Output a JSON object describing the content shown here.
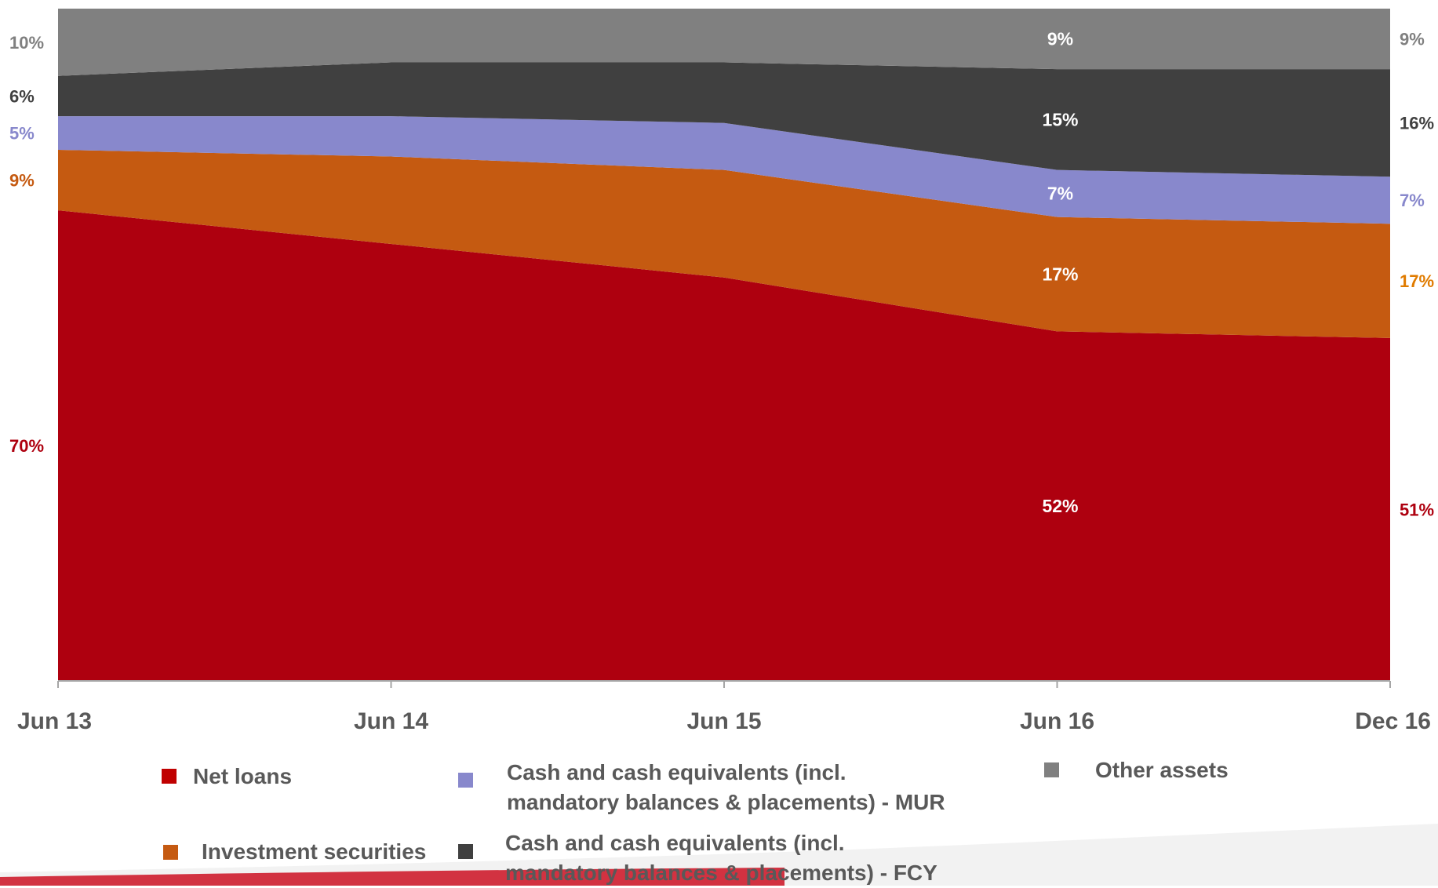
{
  "chart_data": {
    "type": "area",
    "stacked": true,
    "categories": [
      "Jun 13",
      "Jun 14",
      "Jun 15",
      "Jun 16",
      "Dec 16"
    ],
    "ylim": [
      0,
      100
    ],
    "grid": false,
    "legend_position": "bottom",
    "series": [
      {
        "name": "Net loans",
        "color": "#AE000F",
        "values": [
          70,
          65,
          60,
          52,
          51
        ]
      },
      {
        "name": "Investment securities",
        "color": "#C55A11",
        "values": [
          9,
          13,
          16,
          17,
          17
        ]
      },
      {
        "name": "Cash and cash equivalents (incl.\nmandatory balances & placements) - MUR",
        "color": "#8888CC",
        "values": [
          5,
          6,
          7,
          7,
          7
        ]
      },
      {
        "name": "Cash and cash equivalents (incl.\nmandatory balances & placements) - FCY",
        "color": "#404040",
        "values": [
          6,
          8,
          9,
          15,
          16
        ]
      },
      {
        "name": "Other assets",
        "color": "#808080",
        "values": [
          10,
          8,
          8,
          9,
          9
        ]
      }
    ],
    "data_labels": [
      {
        "text": "10%",
        "series": 4,
        "point": 0,
        "color": "#808080"
      },
      {
        "text": "6%",
        "series": 3,
        "point": 0,
        "color": "#404040"
      },
      {
        "text": "5%",
        "series": 2,
        "point": 0,
        "color": "#8888CC"
      },
      {
        "text": "9%",
        "series": 1,
        "point": 0,
        "color": "#C55A11"
      },
      {
        "text": "70%",
        "series": 0,
        "point": 0,
        "color": "#AE000F"
      },
      {
        "text": "9%",
        "series": 4,
        "point": 3,
        "color": "#FFFFFF"
      },
      {
        "text": "15%",
        "series": 3,
        "point": 3,
        "color": "#FFFFFF"
      },
      {
        "text": "7%",
        "series": 2,
        "point": 3,
        "color": "#FFFFFF"
      },
      {
        "text": "17%",
        "series": 1,
        "point": 3,
        "color": "#FFFFFF"
      },
      {
        "text": "52%",
        "series": 0,
        "point": 3,
        "color": "#FFFFFF"
      },
      {
        "text": "9%",
        "series": 4,
        "point": 4,
        "color": "#808080"
      },
      {
        "text": "16%",
        "series": 3,
        "point": 4,
        "color": "#404040"
      },
      {
        "text": "7%",
        "series": 2,
        "point": 4,
        "color": "#8888CC"
      },
      {
        "text": "17%",
        "series": 1,
        "point": 4,
        "color": "#E07B00"
      },
      {
        "text": "51%",
        "series": 0,
        "point": 4,
        "color": "#AE000F"
      }
    ]
  },
  "legend": {
    "net_loans": "Net loans",
    "investment_securities": "Investment securities",
    "cash_mur": "Cash and cash equivalents (incl.\nmandatory balances & placements) - MUR",
    "cash_fcy": "Cash and cash equivalents (incl.\nmandatory balances & placements) - FCY",
    "other_assets": "Other assets"
  },
  "colors": {
    "net_loans": "#AE000F",
    "investment_securities": "#C55A11",
    "cash_mur": "#8888CC",
    "cash_fcy": "#404040",
    "other_assets": "#808080",
    "axis_text": "#595959"
  }
}
